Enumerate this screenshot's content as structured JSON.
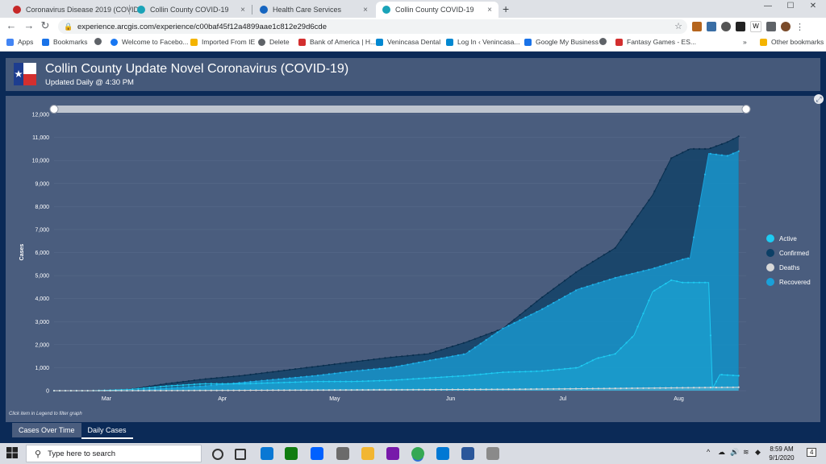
{
  "browser": {
    "tabs": [
      {
        "title": "Coronavirus Disease 2019 (COVID",
        "favicon_color": "#c62828",
        "active": false
      },
      {
        "title": "Collin County COVID-19",
        "favicon_color": "#1aa3b8",
        "active": false
      },
      {
        "title": "Health Care Services",
        "favicon_color": "#1565c0",
        "active": false
      },
      {
        "title": "Collin County COVID-19",
        "favicon_color": "#1aa3b8",
        "active": true
      }
    ],
    "new_tab": "+",
    "close_glyph": "×",
    "url": "experience.arcgis.com/experience/c00baf45f12a4899aae1c812e29d6cde",
    "window_controls": {
      "minimize": "—",
      "maximize": "☐",
      "close": "✕"
    },
    "bookmarks": [
      {
        "label": "Apps",
        "color": "#4285f4"
      },
      {
        "label": "Bookmarks",
        "color": "#1a73e8"
      },
      {
        "label": "",
        "color": "#5f6368"
      },
      {
        "label": "Welcome to Facebo...",
        "color": "#1877f2"
      },
      {
        "label": "Imported From IE",
        "color": "#f4b400"
      },
      {
        "label": "Delete",
        "color": "#5f6368"
      },
      {
        "label": "Bank of America | H...",
        "color": "#d32f2f"
      },
      {
        "label": "Venincasa Dental",
        "color": "#0288d1"
      },
      {
        "label": "Log In ‹ Venincasa...",
        "color": "#0288d1"
      },
      {
        "label": "Google My Business",
        "color": "#1a73e8"
      },
      {
        "label": "",
        "color": "#5f6368"
      },
      {
        "label": "Fantasy Games - ES...",
        "color": "#d32f2f"
      }
    ],
    "bookmarks_overflow": "»",
    "other_bookmarks": "Other bookmarks"
  },
  "app": {
    "title": "Collin County Update Novel Coronavirus (COVID-19)",
    "subtitle": "Updated Daily @ 4:30 PM",
    "hint": "Click item in Legend to filter graph",
    "bottom_tabs": [
      "Cases Over Time",
      "Daily Cases"
    ]
  },
  "colors": {
    "active": "#1ecbf2",
    "confirmed": "#0c3f66",
    "deaths": "#d8d8d8",
    "recovered": "#1aa0d8",
    "panel": "#4a5d7e"
  },
  "chart_data": {
    "type": "area",
    "ylabel": "Cases",
    "ylim": [
      0,
      12000
    ],
    "yticks": [
      "0",
      "1,000",
      "2,000",
      "3,000",
      "4,000",
      "5,000",
      "6,000",
      "7,000",
      "8,000",
      "9,000",
      "10,000",
      "11,000",
      "12,000"
    ],
    "xticks": [
      "Mar",
      "Apr",
      "May",
      "Jun",
      "Jul",
      "Aug"
    ],
    "xrange_days": [
      0,
      185
    ],
    "xtick_days": [
      14,
      45,
      75,
      106,
      136,
      167
    ],
    "legend": [
      "Active",
      "Confirmed",
      "Deaths",
      "Recovered"
    ],
    "series": [
      {
        "name": "Confirmed",
        "x": [
          0,
          10,
          20,
          30,
          40,
          50,
          60,
          70,
          80,
          90,
          100,
          110,
          120,
          130,
          140,
          150,
          160,
          165,
          170,
          175,
          180,
          183
        ],
        "values": [
          0,
          0,
          50,
          300,
          500,
          650,
          850,
          1050,
          1250,
          1450,
          1600,
          2100,
          2700,
          4000,
          5200,
          6200,
          8500,
          10100,
          10500,
          10500,
          10800,
          11050
        ]
      },
      {
        "name": "Recovered",
        "x": [
          0,
          10,
          20,
          30,
          40,
          50,
          60,
          70,
          80,
          90,
          100,
          110,
          120,
          130,
          140,
          150,
          160,
          165,
          169,
          170,
          175,
          180,
          183
        ],
        "values": [
          0,
          0,
          0,
          100,
          200,
          350,
          500,
          650,
          850,
          1000,
          1300,
          1600,
          2700,
          3500,
          4400,
          4900,
          5300,
          5550,
          5750,
          5750,
          10300,
          10200,
          10400
        ]
      },
      {
        "name": "Active",
        "x": [
          0,
          10,
          20,
          30,
          40,
          50,
          60,
          70,
          80,
          90,
          100,
          110,
          120,
          130,
          140,
          145,
          150,
          155,
          160,
          165,
          168,
          175,
          176,
          178,
          183
        ],
        "values": [
          0,
          0,
          50,
          200,
          300,
          300,
          350,
          400,
          400,
          450,
          550,
          650,
          800,
          850,
          1000,
          1400,
          1600,
          2400,
          4300,
          4800,
          4700,
          4700,
          100,
          700,
          650
        ]
      },
      {
        "name": "Deaths",
        "x": [
          0,
          30,
          60,
          90,
          120,
          150,
          183
        ],
        "values": [
          0,
          5,
          20,
          40,
          60,
          100,
          150
        ]
      }
    ]
  },
  "taskbar": {
    "search_placeholder": "Type here to search",
    "time": "8:59 AM",
    "date": "9/1/2020",
    "notification_count": "4",
    "apps": [
      {
        "name": "cortana-icon",
        "color": "#333333"
      },
      {
        "name": "task-view-icon",
        "color": "#333333"
      },
      {
        "name": "edge-icon",
        "color": "#0a78d4"
      },
      {
        "name": "xbox-icon",
        "color": "#107c10"
      },
      {
        "name": "dropbox-icon",
        "color": "#0061ff"
      },
      {
        "name": "snip-icon",
        "color": "#6b6b6b"
      },
      {
        "name": "file-explorer-icon",
        "color": "#f2b632"
      },
      {
        "name": "onenote-icon",
        "color": "#7719aa"
      },
      {
        "name": "chrome-icon",
        "color": "#34a853"
      },
      {
        "name": "outlook-icon",
        "color": "#0078d4"
      },
      {
        "name": "word-icon",
        "color": "#2b579a"
      },
      {
        "name": "network-drive-icon",
        "color": "#8a8a8a"
      }
    ]
  }
}
